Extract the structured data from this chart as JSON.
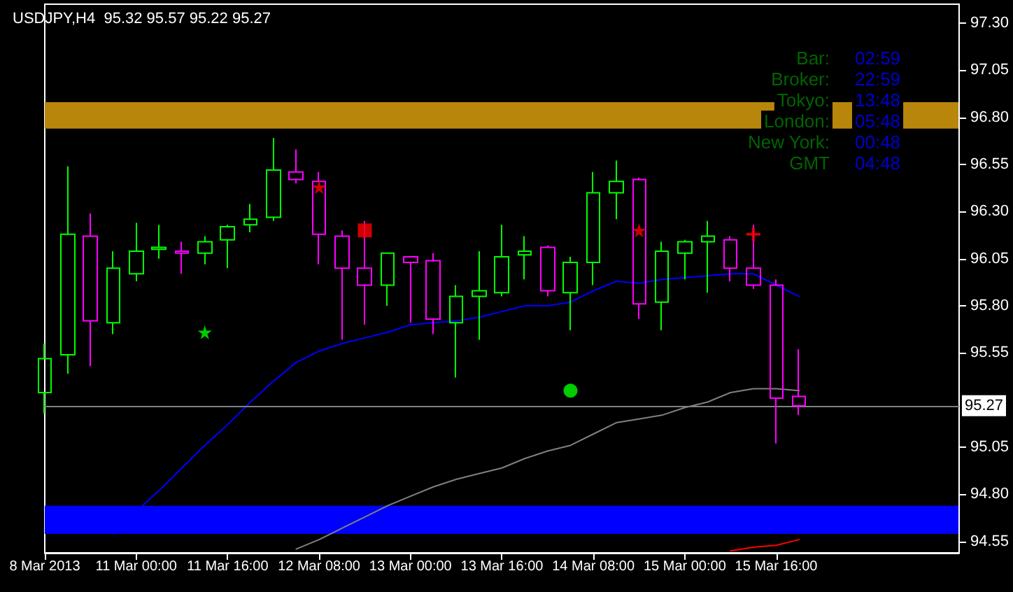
{
  "chart_data": {
    "type": "candlestick",
    "title": "USDJPY,H4  95.32 95.57 95.22 95.27",
    "categories": [
      "8 Mar 2013",
      null,
      null,
      null,
      "11 Mar 00:00",
      null,
      null,
      null,
      "11 Mar 16:00",
      null,
      null,
      null,
      "12 Mar 08:00",
      null,
      null,
      null,
      "13 Mar 00:00",
      null,
      null,
      null,
      "13 Mar 16:00",
      null,
      null,
      null,
      "14 Mar 08:00",
      null,
      null,
      null,
      "15 Mar 00:00",
      null,
      null,
      null,
      "15 Mar 16:00",
      null
    ],
    "ylim": [
      94.49,
      97.4
    ],
    "yticks": [
      {
        "value": 94.55,
        "label": "94.55"
      },
      {
        "value": 94.8,
        "label": "94.80"
      },
      {
        "value": 95.05,
        "label": "95.05"
      },
      {
        "value": 95.55,
        "label": "95.55"
      },
      {
        "value": 95.8,
        "label": "95.80"
      },
      {
        "value": 96.05,
        "label": "96.05"
      },
      {
        "value": 96.3,
        "label": "96.30"
      },
      {
        "value": 96.55,
        "label": "96.55"
      },
      {
        "value": 96.8,
        "label": "96.80"
      },
      {
        "value": 97.05,
        "label": "97.05"
      },
      {
        "value": 97.3,
        "label": "97.30"
      }
    ],
    "series": [
      {
        "ohlc": [
          [
            95.34,
            95.6,
            95.23,
            95.52
          ],
          [
            95.54,
            96.54,
            95.44,
            96.18
          ],
          [
            96.17,
            96.29,
            95.48,
            95.72
          ],
          [
            95.71,
            96.09,
            95.65,
            96.0
          ],
          [
            95.97,
            96.24,
            95.93,
            96.09
          ],
          [
            96.1,
            96.23,
            96.05,
            96.11
          ],
          [
            96.09,
            96.14,
            95.97,
            96.08
          ],
          [
            96.08,
            96.17,
            96.02,
            96.14
          ],
          [
            96.15,
            96.23,
            96.0,
            96.22
          ],
          [
            96.23,
            96.34,
            96.19,
            96.26
          ],
          [
            96.27,
            96.69,
            96.25,
            96.52
          ],
          [
            96.51,
            96.63,
            96.45,
            96.47
          ],
          [
            96.46,
            96.51,
            96.02,
            96.18
          ],
          [
            96.17,
            96.2,
            95.62,
            96.0
          ],
          [
            96.0,
            96.25,
            95.7,
            95.91
          ],
          [
            95.91,
            96.08,
            95.8,
            96.08
          ],
          [
            96.06,
            96.06,
            95.71,
            96.03
          ],
          [
            96.04,
            96.08,
            95.65,
            95.73
          ],
          [
            95.71,
            95.91,
            95.42,
            95.85
          ],
          [
            95.85,
            96.09,
            95.62,
            95.88
          ],
          [
            95.87,
            96.23,
            95.85,
            96.06
          ],
          [
            96.07,
            96.17,
            95.94,
            96.09
          ],
          [
            96.11,
            96.12,
            95.85,
            95.88
          ],
          [
            95.87,
            96.06,
            95.67,
            96.03
          ],
          [
            96.03,
            96.51,
            95.91,
            96.4
          ],
          [
            96.4,
            96.57,
            96.26,
            96.46
          ],
          [
            96.47,
            96.48,
            95.73,
            95.81
          ],
          [
            95.82,
            96.14,
            95.67,
            96.09
          ],
          [
            96.08,
            96.15,
            95.94,
            96.14
          ],
          [
            96.14,
            96.25,
            95.87,
            96.17
          ],
          [
            96.15,
            96.17,
            95.93,
            96.0
          ],
          [
            96.0,
            96.23,
            95.89,
            95.91
          ],
          [
            95.91,
            95.94,
            95.07,
            95.31
          ],
          [
            95.32,
            95.57,
            95.22,
            95.27
          ]
        ],
        "colors": [
          "#00ff00",
          "#00ff00",
          "#ff00ff",
          "#00ff00",
          "#00ff00",
          "#00ff00",
          "#ff00ff",
          "#00ff00",
          "#00ff00",
          "#00ff00",
          "#00ff00",
          "#ff00ff",
          "#ff00ff",
          "#ff00ff",
          "#ff00ff",
          "#00ff00",
          "#ff00ff",
          "#ff00ff",
          "#00ff00",
          "#00ff00",
          "#00ff00",
          "#00ff00",
          "#ff00ff",
          "#00ff00",
          "#00ff00",
          "#00ff00",
          "#ff00ff",
          "#00ff00",
          "#00ff00",
          "#00ff00",
          "#ff00ff",
          "#ff00ff",
          "#ff00ff",
          "#ff00ff"
        ]
      },
      {
        "type": "line",
        "color": "#0000ff",
        "values": [
          null,
          null,
          null,
          94.59,
          94.71,
          94.82,
          94.94,
          95.06,
          95.17,
          95.29,
          95.4,
          95.5,
          95.56,
          95.6,
          95.63,
          95.66,
          95.7,
          95.71,
          95.72,
          95.74,
          95.77,
          95.8,
          95.8,
          95.82,
          95.88,
          95.93,
          95.92,
          95.94,
          95.95,
          95.96,
          95.97,
          95.97,
          95.91,
          95.85
        ]
      },
      {
        "type": "line",
        "color": "#808080",
        "values": [
          null,
          null,
          null,
          null,
          null,
          null,
          null,
          null,
          null,
          null,
          null,
          94.51,
          94.56,
          94.62,
          94.68,
          94.74,
          94.79,
          94.84,
          94.88,
          94.91,
          94.94,
          94.99,
          95.03,
          95.06,
          95.12,
          95.18,
          95.2,
          95.22,
          95.26,
          95.29,
          95.34,
          95.36,
          95.36,
          95.35
        ]
      },
      {
        "type": "line",
        "color": "#ff0000",
        "values": [
          null,
          null,
          null,
          null,
          null,
          null,
          null,
          null,
          null,
          null,
          null,
          null,
          null,
          null,
          null,
          null,
          null,
          null,
          null,
          null,
          null,
          null,
          null,
          null,
          null,
          null,
          null,
          null,
          null,
          null,
          94.5,
          94.52,
          94.53,
          94.56
        ]
      },
      {
        "type": "scatter",
        "color": "#00ff00",
        "marker": "star",
        "values": [
          null,
          null,
          null,
          null,
          null,
          null,
          null,
          95.66,
          null,
          null,
          null,
          null,
          null,
          null,
          null,
          null,
          null,
          null,
          null,
          null,
          null,
          null,
          null,
          null,
          null,
          null,
          null,
          null,
          null,
          null,
          null,
          null,
          null,
          null
        ]
      },
      {
        "type": "scatter",
        "color": "#ff0000",
        "marker": "star",
        "values": [
          null,
          null,
          null,
          null,
          null,
          null,
          null,
          null,
          null,
          null,
          null,
          null,
          96.43,
          null,
          null,
          null,
          null,
          null,
          null,
          null,
          null,
          null,
          null,
          null,
          null,
          null,
          96.2,
          null,
          null,
          null,
          null,
          null,
          null,
          null
        ]
      },
      {
        "type": "scatter",
        "color": "#ff0000",
        "marker": "square",
        "values": [
          null,
          null,
          null,
          null,
          null,
          null,
          null,
          null,
          null,
          null,
          null,
          null,
          null,
          null,
          96.2,
          null,
          null,
          null,
          null,
          null,
          null,
          null,
          null,
          null,
          null,
          null,
          null,
          null,
          null,
          null,
          null,
          null,
          null,
          null
        ]
      },
      {
        "type": "scatter",
        "color": "#00ff00",
        "marker": "circle",
        "values": [
          null,
          null,
          null,
          null,
          null,
          null,
          null,
          null,
          null,
          null,
          null,
          null,
          null,
          null,
          null,
          null,
          null,
          null,
          null,
          null,
          null,
          null,
          null,
          95.35,
          null,
          null,
          null,
          null,
          null,
          null,
          null,
          null,
          null,
          null
        ]
      },
      {
        "type": "scatter",
        "color": "#ff0000",
        "marker": "cross",
        "values": [
          null,
          null,
          null,
          null,
          null,
          null,
          null,
          null,
          null,
          null,
          null,
          null,
          null,
          null,
          null,
          null,
          null,
          null,
          null,
          null,
          null,
          null,
          null,
          null,
          null,
          null,
          null,
          null,
          null,
          null,
          null,
          96.18,
          null,
          null
        ]
      }
    ],
    "ref_lines": [
      {
        "axis": "y",
        "value": 95.27,
        "label": "95.27",
        "color": "#808080"
      }
    ],
    "bands": [
      {
        "axis": "y",
        "from": 96.74,
        "to": 96.88,
        "color": "#b8860b"
      },
      {
        "axis": "y",
        "from": 94.59,
        "to": 94.74,
        "color": "#0000ff"
      }
    ],
    "annotations": [
      "Bar:",
      "02:59",
      "Broker:",
      "22:59",
      "Tokyo:",
      "13:48",
      "London:",
      "05:48",
      "New York:",
      "00:48",
      "GMT",
      "04:48"
    ]
  }
}
